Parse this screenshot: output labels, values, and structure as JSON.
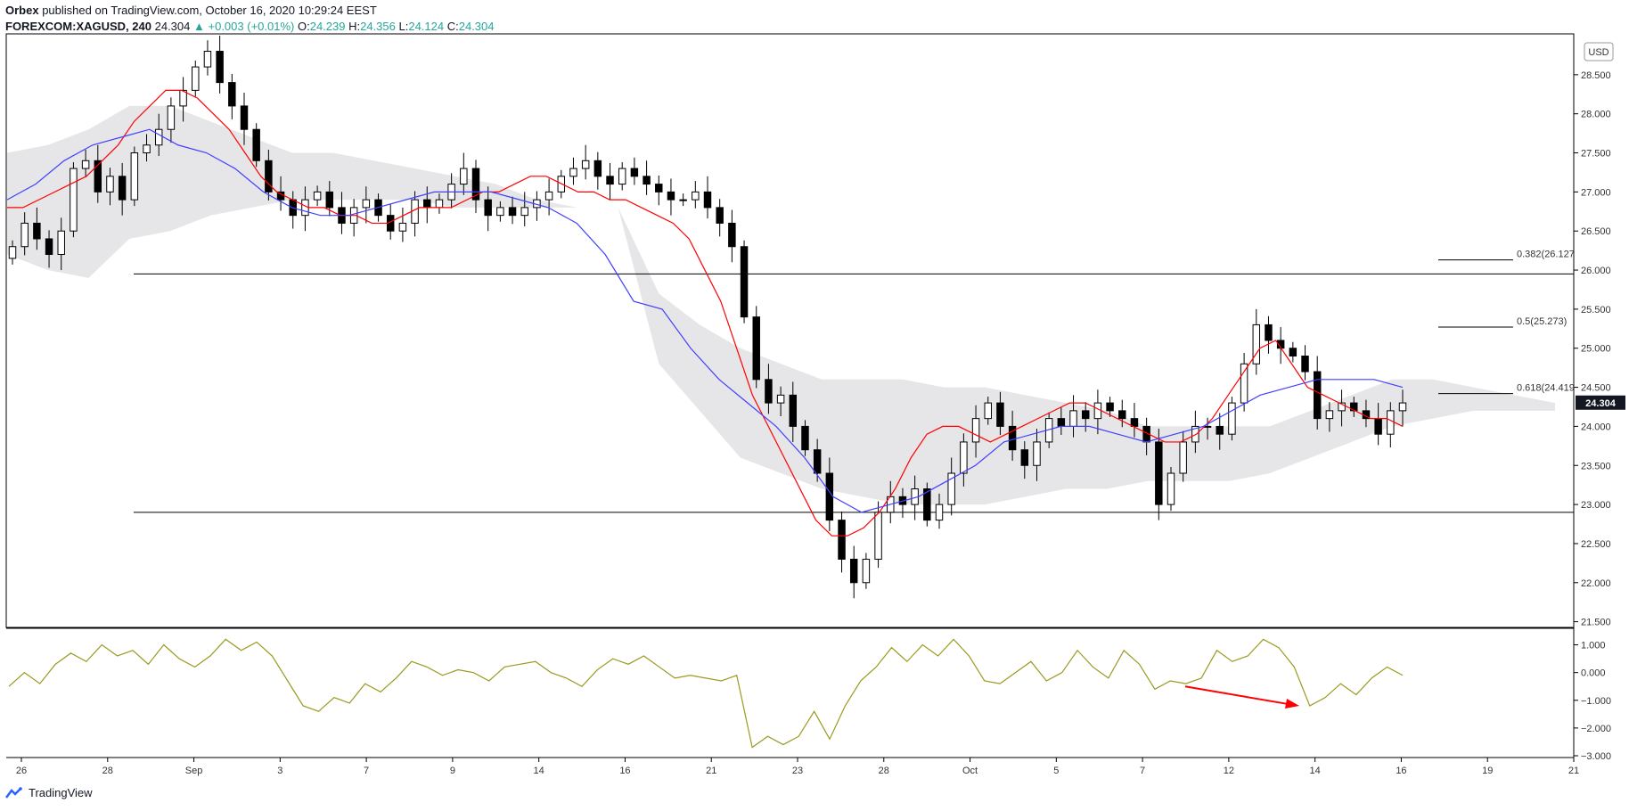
{
  "header": {
    "publisher": "Orbex",
    "published_text": "published on TradingView.com, October 16, 2020 10:29:24 EEST",
    "symbol": "FOREXCOM:XAGUSD, 240",
    "last": "24.304",
    "change": "+0.003 (+0.01%)",
    "o_label": "O:",
    "o": "24.239",
    "h_label": "H:",
    "h": "24.356",
    "l_label": "L:",
    "l": "24.124",
    "c_label": "C:",
    "c": "24.304"
  },
  "footer": {
    "brand": "TradingView"
  },
  "chart_data": [
    {
      "type": "candlestick",
      "title": "",
      "currency": "USD",
      "last_price_label": "24.304",
      "ylim": [
        21.45,
        29.0
      ],
      "y_ticks": [
        "28.500",
        "28.000",
        "27.500",
        "27.000",
        "26.500",
        "26.000",
        "25.500",
        "25.000",
        "24.500",
        "24.000",
        "23.500",
        "23.000",
        "22.500",
        "22.000",
        "21.500"
      ],
      "horizontal_lines": [
        25.95,
        22.9
      ],
      "fib_levels": [
        {
          "label": "0.382(26.127",
          "value": 26.13
        },
        {
          "label": "0.5(25.273)",
          "value": 25.27
        },
        {
          "label": "0.618(24.419",
          "value": 24.42
        }
      ],
      "close": [
        26.3,
        26.6,
        26.4,
        26.2,
        26.5,
        27.3,
        27.4,
        27.0,
        27.2,
        26.9,
        27.5,
        27.6,
        27.8,
        28.1,
        28.3,
        28.6,
        28.8,
        28.4,
        28.1,
        27.8,
        27.4,
        27.0,
        26.9,
        26.7,
        26.9,
        27.0,
        26.8,
        26.6,
        26.8,
        26.9,
        26.7,
        26.5,
        26.6,
        26.9,
        26.8,
        26.9,
        27.1,
        27.3,
        26.9,
        26.7,
        26.8,
        26.7,
        26.8,
        26.9,
        27.0,
        27.2,
        27.3,
        27.4,
        27.2,
        27.1,
        27.3,
        27.2,
        27.1,
        27.0,
        26.9,
        26.9,
        27.0,
        26.8,
        26.6,
        26.3,
        25.4,
        24.6,
        24.3,
        24.4,
        24.0,
        23.7,
        23.4,
        22.8,
        22.3,
        22.0,
        22.3,
        22.9,
        23.1,
        23.0,
        23.2,
        22.8,
        23.0,
        23.4,
        23.8,
        24.1,
        24.3,
        24.0,
        23.7,
        23.5,
        23.8,
        24.1,
        24.0,
        24.2,
        24.1,
        24.3,
        24.2,
        24.1,
        24.0,
        23.8,
        23.0,
        23.4,
        23.8,
        24.0,
        24.0,
        23.9,
        24.3,
        24.8,
        25.3,
        25.1,
        25.0,
        24.9,
        24.7,
        24.1,
        24.2,
        24.3,
        24.2,
        24.1,
        23.9,
        24.2,
        24.3
      ],
      "tenkan": [
        26.8,
        26.8,
        26.9,
        27.0,
        27.1,
        27.2,
        27.4,
        27.6,
        27.9,
        28.1,
        28.3,
        28.3,
        28.2,
        28.0,
        27.8,
        27.5,
        27.2,
        27.0,
        26.9,
        26.8,
        26.8,
        26.7,
        26.7,
        26.6,
        26.6,
        26.7,
        26.8,
        26.8,
        26.8,
        26.9,
        27.0,
        27.0,
        27.1,
        27.2,
        27.2,
        27.1,
        27.0,
        27.0,
        26.9,
        26.9,
        26.8,
        26.7,
        26.6,
        26.4,
        26.0,
        25.6,
        25.0,
        24.4,
        24.0,
        23.6,
        23.2,
        22.8,
        22.6,
        22.6,
        22.7,
        22.9,
        23.2,
        23.6,
        23.9,
        24.0,
        24.0,
        23.9,
        23.8,
        23.9,
        24.0,
        24.1,
        24.2,
        24.3,
        24.3,
        24.2,
        24.1,
        24.0,
        23.9,
        23.8,
        23.8,
        23.9,
        24.1,
        24.4,
        24.7,
        25.0,
        25.1,
        24.8,
        24.5,
        24.4,
        24.3,
        24.2,
        24.1,
        24.1,
        24.0
      ],
      "kijun": [
        26.9,
        27.1,
        27.4,
        27.6,
        27.7,
        27.8,
        27.6,
        27.5,
        27.3,
        27.0,
        26.8,
        26.7,
        26.7,
        26.8,
        26.9,
        27.0,
        27.0,
        27.0,
        26.9,
        26.8,
        26.6,
        26.2,
        25.6,
        25.5,
        25.0,
        24.6,
        24.3,
        24.0,
        23.6,
        23.1,
        22.9,
        23.0,
        23.1,
        23.3,
        23.5,
        23.8,
        23.9,
        24.0,
        24.0,
        23.9,
        23.8,
        23.9,
        24.0,
        24.2,
        24.4,
        24.5,
        24.6,
        24.6,
        24.6,
        24.5
      ],
      "cloud_top": [
        27.5,
        27.6,
        27.8,
        28.1,
        28.1,
        27.9,
        27.7,
        27.5,
        27.5,
        27.4,
        27.3,
        27.2,
        27.1,
        26.9,
        26.8,
        26.8,
        25.7,
        25.3,
        25.0,
        24.8,
        24.6,
        24.6,
        24.6,
        24.5,
        24.5,
        24.4,
        24.3,
        24.2,
        24.0,
        24.0,
        24.0,
        24.0,
        24.2,
        24.4,
        24.6,
        24.6,
        24.5,
        24.4,
        24.3
      ],
      "cloud_bottom": [
        26.2,
        26.0,
        25.9,
        26.4,
        26.5,
        26.7,
        26.8,
        26.9,
        26.9,
        26.9,
        26.9,
        26.8,
        26.8,
        26.8,
        26.8,
        26.8,
        24.8,
        24.2,
        23.6,
        23.4,
        23.2,
        23.1,
        23.0,
        23.0,
        23.0,
        23.1,
        23.2,
        23.2,
        23.3,
        23.3,
        23.3,
        23.4,
        23.6,
        23.8,
        24.0,
        24.1,
        24.2,
        24.2,
        24.2
      ]
    },
    {
      "type": "line",
      "title": "",
      "ylim": [
        -3.0,
        1.5
      ],
      "y_ticks": [
        "1.000",
        "0.000",
        "−1.000",
        "−2.000",
        "−3.000"
      ],
      "values": [
        -0.5,
        0.0,
        -0.4,
        0.3,
        0.7,
        0.4,
        1.0,
        0.6,
        0.8,
        0.3,
        1.0,
        0.5,
        0.2,
        0.6,
        1.2,
        0.8,
        1.1,
        0.6,
        -0.3,
        -1.2,
        -1.4,
        -0.9,
        -1.1,
        -0.4,
        -0.7,
        -0.2,
        0.4,
        0.2,
        -0.1,
        0.1,
        0.0,
        -0.3,
        0.2,
        0.3,
        0.4,
        0.0,
        -0.2,
        -0.5,
        0.1,
        0.5,
        0.3,
        0.6,
        0.2,
        -0.2,
        -0.1,
        -0.2,
        -0.3,
        -0.1,
        -2.7,
        -2.3,
        -2.6,
        -2.3,
        -1.4,
        -2.4,
        -1.2,
        -0.3,
        0.2,
        0.9,
        0.4,
        1.0,
        0.6,
        1.2,
        0.6,
        -0.3,
        -0.4,
        0.0,
        0.4,
        -0.3,
        0.0,
        0.8,
        0.2,
        -0.2,
        0.8,
        0.3,
        -0.6,
        -0.3,
        -0.4,
        -0.2,
        0.8,
        0.4,
        0.6,
        1.2,
        0.9,
        0.2,
        -1.2,
        -0.9,
        -0.4,
        -0.8,
        -0.2,
        0.2,
        -0.1
      ],
      "arrow": {
        "from": [
          0.0,
          0.0
        ],
        "to": [
          0.0,
          0.0
        ]
      },
      "x_ticks": [
        "26",
        "28",
        "Sep",
        "3",
        "7",
        "9",
        "14",
        "16",
        "21",
        "23",
        "28",
        "Oct",
        "5",
        "7",
        "12",
        "14",
        "16",
        "19",
        "21"
      ]
    }
  ],
  "colors": {
    "up": "#ffffff",
    "down": "#000000",
    "tenkan": "#ff0000",
    "kijun": "#4040ff",
    "cloud": "#e6e6e8",
    "osc": "#9a9a1e",
    "arrow": "#ff0000",
    "grid": "#000000"
  }
}
